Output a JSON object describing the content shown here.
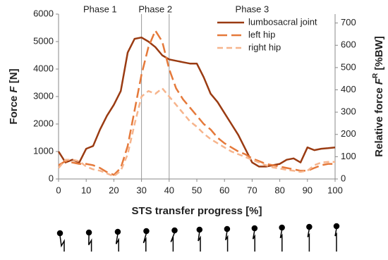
{
  "chart_data": {
    "type": "line",
    "x": [
      0,
      2.5,
      5,
      7.5,
      10,
      12.5,
      15,
      17.5,
      20,
      22.5,
      25,
      27.5,
      30,
      32.5,
      35,
      37.5,
      40,
      42.5,
      45,
      47.5,
      50,
      52.5,
      55,
      57.5,
      60,
      62.5,
      65,
      67.5,
      70,
      72.5,
      75,
      77.5,
      80,
      82.5,
      85,
      87.5,
      90,
      92.5,
      95,
      97.5,
      100
    ],
    "series": [
      {
        "name": "lumbosacral joint",
        "color": "#9a3b12",
        "dash": "none",
        "values": [
          1000,
          600,
          700,
          600,
          1100,
          1200,
          1800,
          2300,
          2700,
          3200,
          4600,
          5100,
          5150,
          5000,
          4800,
          4500,
          4350,
          4300,
          4250,
          4200,
          4200,
          3700,
          3100,
          2800,
          2400,
          2000,
          1600,
          1100,
          600,
          450,
          450,
          500,
          550,
          700,
          750,
          600,
          1150,
          1050,
          1100,
          1120,
          1150
        ]
      },
      {
        "name": "left hip",
        "color": "#e5793a",
        "dash": "14 6",
        "values": [
          500,
          650,
          600,
          550,
          550,
          500,
          400,
          250,
          150,
          400,
          1200,
          2500,
          3800,
          4800,
          5400,
          5000,
          4000,
          3300,
          2900,
          2600,
          2300,
          2000,
          1800,
          1500,
          1300,
          1150,
          1000,
          900,
          750,
          650,
          550,
          500,
          450,
          400,
          350,
          300,
          300,
          400,
          500,
          550,
          550
        ]
      },
      {
        "name": "right hip",
        "color": "#f6b48c",
        "dash": "8 5",
        "values": [
          400,
          700,
          700,
          650,
          450,
          350,
          300,
          200,
          100,
          300,
          900,
          2000,
          3000,
          3200,
          3100,
          3300,
          3000,
          2700,
          2400,
          2100,
          1900,
          1650,
          1450,
          1300,
          1150,
          1000,
          900,
          800,
          700,
          600,
          500,
          420,
          380,
          330,
          300,
          260,
          300,
          500,
          600,
          620,
          620
        ]
      }
    ],
    "xlim": [
      0,
      100
    ],
    "xticks": [
      0,
      10,
      20,
      30,
      40,
      50,
      60,
      70,
      80,
      90,
      100
    ],
    "ylim": [
      0,
      6000
    ],
    "yticks": [
      0,
      1000,
      2000,
      3000,
      4000,
      5000,
      6000
    ],
    "y2lim": [
      0,
      740
    ],
    "y2ticks": [
      0,
      100,
      200,
      300,
      400,
      500,
      600,
      700
    ],
    "xlabel": "STS transfer progress [%]",
    "ylabel": [
      "Force ",
      "F",
      " [N]"
    ],
    "y2label": [
      "Relative force ",
      "F",
      "R",
      " [%BW]"
    ],
    "vlines": [
      30,
      40
    ],
    "annotations": [
      {
        "text": "Phase 1",
        "x": 15
      },
      {
        "text": "Phase 2",
        "x": 35
      },
      {
        "text": "Phase 3",
        "x": 70
      }
    ],
    "legend": "upper right"
  }
}
